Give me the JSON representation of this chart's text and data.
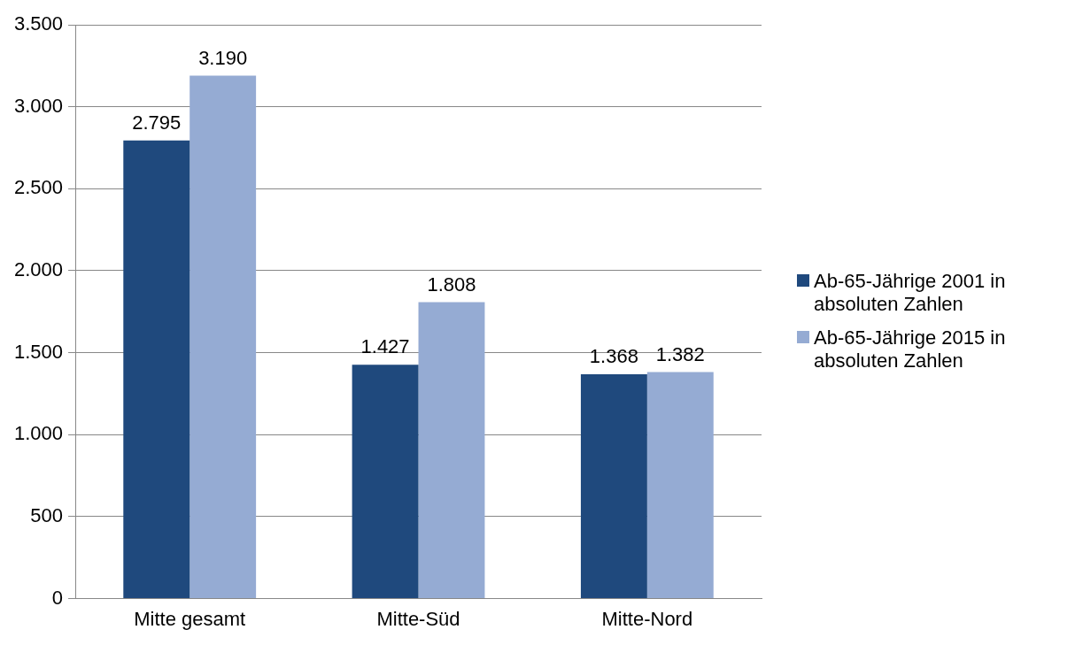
{
  "chart_data": {
    "type": "bar",
    "categories": [
      "Mitte gesamt",
      "Mitte-Süd",
      "Mitte-Nord"
    ],
    "series": [
      {
        "name": "Ab-65-Jährige 2001  in absoluten Zahlen",
        "color": "#1f497d",
        "values": [
          2795,
          1427,
          1368
        ],
        "value_labels": [
          "2.795",
          "1.427",
          "1.368"
        ]
      },
      {
        "name": "Ab-65-Jährige 2015  in absoluten Zahlen",
        "color": "#95abd3",
        "values": [
          3190,
          1808,
          1382
        ],
        "value_labels": [
          "3.190",
          "1.808",
          "1.382"
        ]
      }
    ],
    "ylim": [
      0,
      3500
    ],
    "yticks": [
      0,
      {
        "value": 500,
        "label": "500"
      },
      {
        "value": 1000,
        "label": "1.000"
      },
      {
        "value": 1500,
        "label": "1.500"
      },
      {
        "value": 2000,
        "label": "2.000"
      },
      {
        "value": 2500,
        "label": "2.500"
      },
      {
        "value": 3000,
        "label": "3.000"
      },
      {
        "value": 3500,
        "label": "3.500"
      }
    ],
    "grid": "y",
    "legend": "right"
  }
}
